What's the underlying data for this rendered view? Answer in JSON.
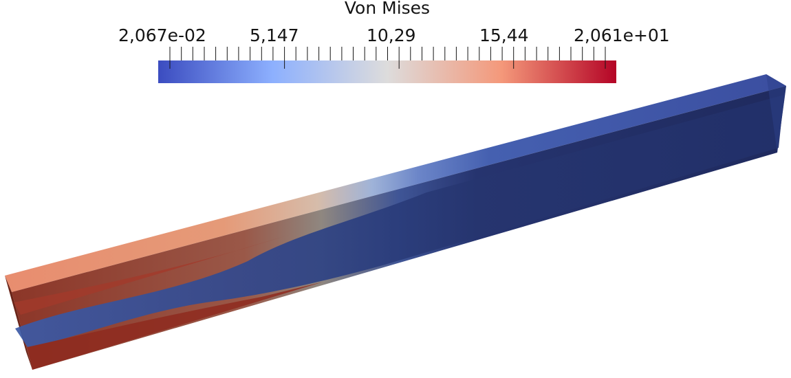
{
  "scalar_bar": {
    "title": "Von Mises",
    "tick_labels": [
      "2,067e-02",
      "5,147",
      "10,29",
      "15,44",
      "2,061e+01"
    ],
    "colormap": [
      "#3b4cc0",
      "#8db0fe",
      "#dddcdc",
      "#f4987a",
      "#b40426"
    ]
  },
  "scene": {
    "background": "#ffffff",
    "object": "beam",
    "colors": {
      "low": "#25306b",
      "high_top": "#e48a6c",
      "high_side": "#9a3a2c"
    }
  }
}
